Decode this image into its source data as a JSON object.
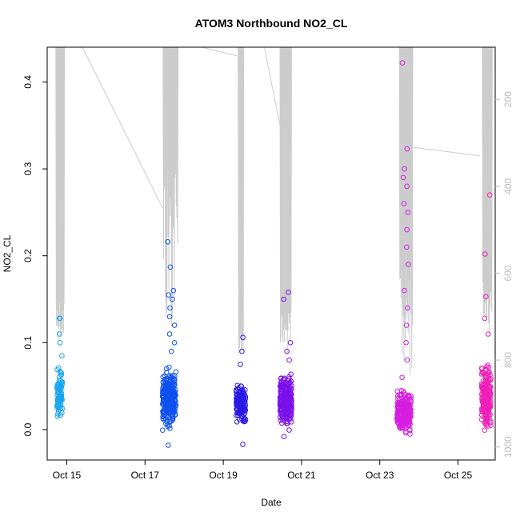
{
  "chart_data": {
    "type": "scatter",
    "title": "ATOM3 Northbound NO2_CL",
    "xlabel": "Date",
    "ylabel": "NO2_CL",
    "x_ticks": [
      "Oct 15",
      "Oct 17",
      "Oct 19",
      "Oct 21",
      "Oct 23",
      "Oct 25"
    ],
    "x_tick_days": [
      15,
      17,
      19,
      21,
      23,
      25
    ],
    "xlim_days": [
      14.5,
      25.95
    ],
    "y_ticks": [
      0.0,
      0.1,
      0.2,
      0.3,
      0.4
    ],
    "ylim": [
      -0.035,
      0.44
    ],
    "right_axis": {
      "ticks": [
        200,
        400,
        600,
        800,
        1000
      ],
      "lim": [
        1030,
        80
      ],
      "color": "#bbbbbb"
    },
    "clusters": [
      {
        "day": 14.82,
        "width": 0.14,
        "core": [
          0.0,
          0.08
        ],
        "extras": [
          0.085,
          0.1,
          0.11,
          0.128,
          0.128
        ],
        "n": 90,
        "color": "#1aa6f0"
      },
      {
        "day": 17.62,
        "width": 0.34,
        "core": [
          -0.005,
          0.075
        ],
        "extras": [
          0.09,
          0.1,
          0.11,
          0.12,
          0.13,
          0.14,
          0.15,
          0.155,
          0.16,
          0.187,
          0.216,
          -0.018
        ],
        "n": 260,
        "color": "#0f50f0"
      },
      {
        "day": 19.45,
        "width": 0.24,
        "core": [
          0.0,
          0.06
        ],
        "extras": [
          0.075,
          0.09,
          0.106,
          -0.017
        ],
        "n": 150,
        "color": "#2a1ae6"
      },
      {
        "day": 20.6,
        "width": 0.3,
        "core": [
          -0.008,
          0.07
        ],
        "extras": [
          0.08,
          0.09,
          0.1,
          0.15,
          0.158,
          -0.008
        ],
        "n": 230,
        "color": "#7a10ea"
      },
      {
        "day": 23.62,
        "width": 0.36,
        "core": [
          -0.01,
          0.05
        ],
        "extras": [
          0.06,
          0.08,
          0.1,
          0.12,
          0.14,
          0.16,
          0.19,
          0.21,
          0.23,
          0.25,
          0.26,
          0.28,
          0.29,
          0.3,
          0.323,
          0.422
        ],
        "n": 230,
        "color": "#d61ee0"
      },
      {
        "day": 25.72,
        "width": 0.24,
        "core": [
          -0.008,
          0.085
        ],
        "extras": [
          0.11,
          0.128,
          0.153,
          0.202,
          0.27
        ],
        "n": 190,
        "color": "#f01eb8"
      }
    ],
    "alt_line": {
      "color": "#cccccc",
      "connectors": [
        {
          "from_day": 15.4,
          "from_alt": 80,
          "to_day": 17.45,
          "to_alt": 450
        },
        {
          "from_day": 18.45,
          "from_alt": 80,
          "to_day": 19.35,
          "to_alt": 100
        },
        {
          "from_day": 20.05,
          "from_alt": 80,
          "to_day": 20.45,
          "to_alt": 260
        },
        {
          "from_day": 23.82,
          "from_alt": 310,
          "to_day": 25.55,
          "to_alt": 330
        }
      ],
      "spike_groups": [
        {
          "start": 14.72,
          "end": 14.92,
          "n": 14,
          "min_low": 650,
          "min_high": 760
        },
        {
          "start": 17.46,
          "end": 17.82,
          "n": 22,
          "min_low": 300,
          "min_high": 760
        },
        {
          "start": 19.38,
          "end": 19.5,
          "n": 10,
          "min_low": 720,
          "min_high": 790
        },
        {
          "start": 20.45,
          "end": 20.72,
          "n": 18,
          "min_low": 690,
          "min_high": 790
        },
        {
          "start": 23.5,
          "end": 23.82,
          "n": 22,
          "min_low": 520,
          "min_high": 850
        },
        {
          "start": 25.62,
          "end": 25.85,
          "n": 12,
          "min_low": 620,
          "min_high": 740
        }
      ]
    },
    "grid": false,
    "legend": "none"
  }
}
